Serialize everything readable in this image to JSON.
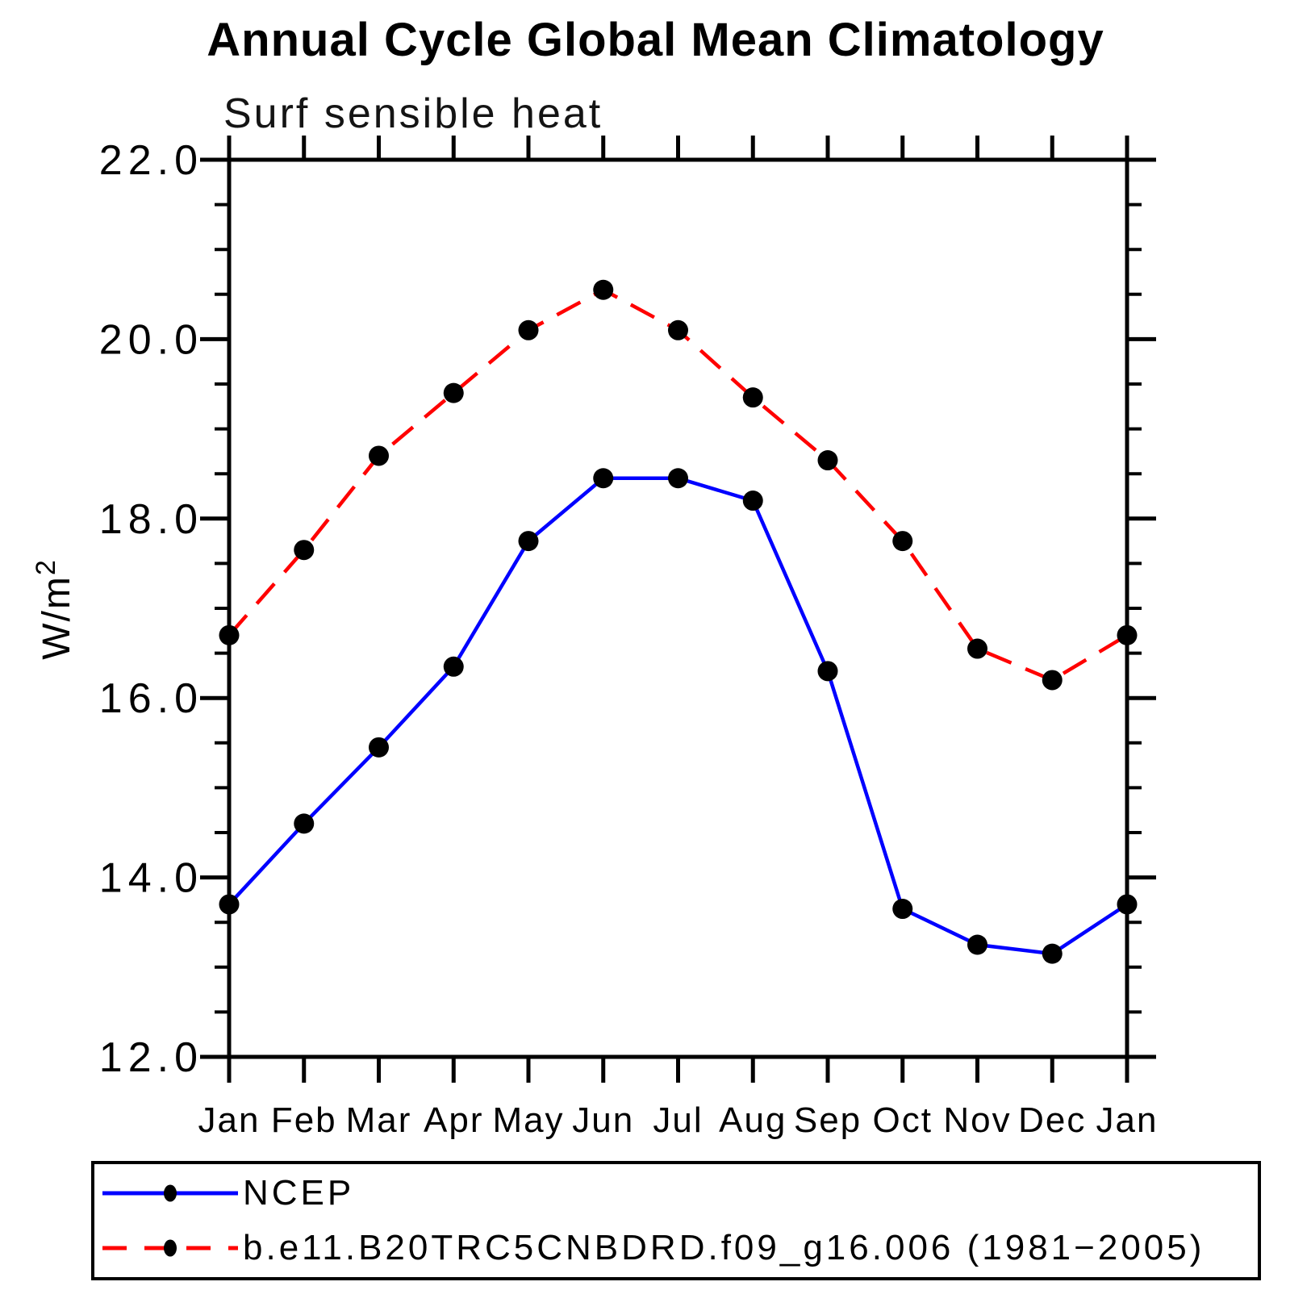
{
  "title": "Annual Cycle Global Mean Climatology",
  "subtitle": "Surf sensible heat",
  "y_axis": {
    "label_base": "W/m",
    "label_exp": "2"
  },
  "chart_data": {
    "type": "line",
    "title": "Annual Cycle Global Mean Climatology",
    "subtitle": "Surf sensible heat",
    "xlabel": "",
    "ylabel": "W/m^2",
    "categories": [
      "Jan",
      "Feb",
      "Mar",
      "Apr",
      "May",
      "Jun",
      "Jul",
      "Aug",
      "Sep",
      "Oct",
      "Nov",
      "Dec",
      "Jan"
    ],
    "ylim": [
      12.0,
      22.0
    ],
    "y_major_tick_step": 2.0,
    "y_minor_tick_step": 0.5,
    "y_tick_labels": [
      "12.0",
      "14.0",
      "16.0",
      "18.0",
      "20.0",
      "22.0"
    ],
    "grid": false,
    "legend_position": "bottom-left-box",
    "series": [
      {
        "name": "NCEP",
        "color": "#0000ff",
        "line_style": "solid",
        "marker_color": "#000000",
        "values": [
          13.7,
          14.6,
          15.45,
          16.35,
          17.75,
          18.45,
          18.45,
          18.2,
          16.3,
          13.65,
          13.25,
          13.15,
          13.7
        ]
      },
      {
        "name": "b.e11.B20TRC5CNBDRD.f09_g16.006 (1981−2005)",
        "color": "#ff0000",
        "line_style": "dashed",
        "marker_color": "#000000",
        "values": [
          16.7,
          17.65,
          18.7,
          19.4,
          20.1,
          20.55,
          20.1,
          19.35,
          18.65,
          17.75,
          16.55,
          16.2,
          16.7
        ]
      }
    ]
  }
}
